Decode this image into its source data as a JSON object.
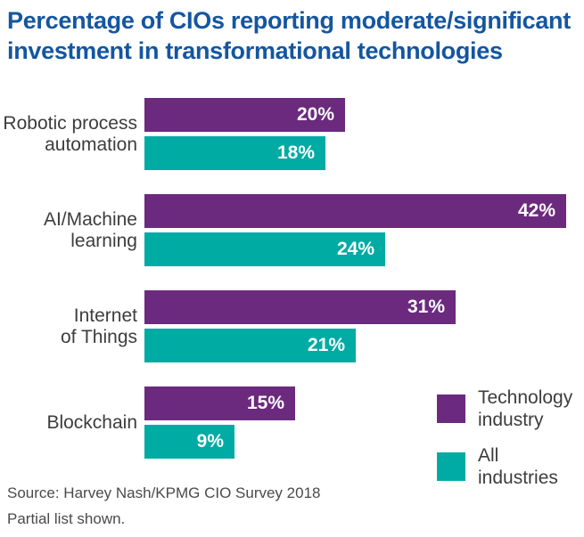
{
  "title": "Percentage of CIOs reporting moderate/significant\ninvestment in transformational technologies",
  "colors": {
    "title_blue": "#1456a0",
    "technology_industry_purple": "#6b2a7e",
    "all_industries_teal": "#00aba4",
    "category_label_text": "#3d3d3d",
    "footer_text": "#4a4a4a",
    "bar_value_text": "#ffffff"
  },
  "legend": {
    "items": [
      {
        "label": "Technology\nindustry",
        "color": "#6b2a7e"
      },
      {
        "label": "All industries",
        "color": "#00aba4"
      }
    ]
  },
  "footer": {
    "source": "Source: Harvey Nash/KPMG CIO Survey 2018",
    "note": "Partial list shown."
  },
  "chart_data": {
    "type": "bar",
    "orientation": "horizontal",
    "title": "Percentage of CIOs reporting moderate/significant investment in transformational technologies",
    "categories": [
      "Robotic process\nautomation",
      "AI/Machine\nlearning",
      "Internet\nof Things",
      "Blockchain"
    ],
    "series": [
      {
        "name": "Technology industry",
        "color": "#6b2a7e",
        "values": [
          20,
          42,
          31,
          15
        ]
      },
      {
        "name": "All industries",
        "color": "#00aba4",
        "values": [
          18,
          24,
          21,
          9
        ]
      }
    ],
    "value_suffix": "%",
    "data_labels": "inside-end",
    "xlim": [
      0,
      42
    ],
    "grid": false,
    "axes_shown": false,
    "legend_position": "bottom-right"
  }
}
